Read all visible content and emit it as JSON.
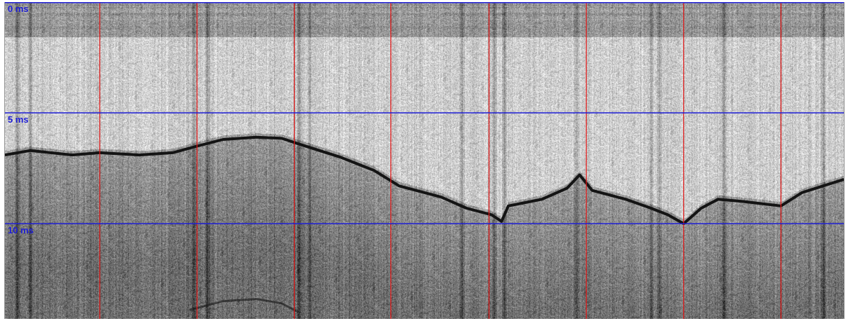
{
  "colors": {
    "time_line": "#1f1fd6",
    "marker_line": "#e01010",
    "label_text": "#1f1fd6",
    "reflector": "#141414"
  },
  "display": {
    "type": "radargram",
    "palette": "grayscale",
    "time_unit": "ms",
    "time_range_ms": [
      0,
      14.3
    ],
    "trace_range": [
      0,
      1
    ]
  },
  "time_lines": [
    {
      "label": "0 ms",
      "time_ms": 0
    },
    {
      "label": "5 ms",
      "time_ms": 5
    },
    {
      "label": "10 ms",
      "time_ms": 10
    }
  ],
  "markers": [
    0.113,
    0.229,
    0.345,
    0.46,
    0.577,
    0.693,
    0.809,
    0.925
  ],
  "bright_columns": [
    0.014,
    0.03,
    0.225,
    0.241,
    0.351,
    0.363,
    0.545,
    0.583,
    0.595,
    0.681,
    0.77,
    0.78,
    0.857,
    0.975
  ],
  "reflector": {
    "points": [
      [
        0.0,
        6.9
      ],
      [
        0.03,
        6.7
      ],
      [
        0.08,
        6.9
      ],
      [
        0.113,
        6.8
      ],
      [
        0.16,
        6.9
      ],
      [
        0.2,
        6.8
      ],
      [
        0.229,
        6.5
      ],
      [
        0.26,
        6.2
      ],
      [
        0.3,
        6.1
      ],
      [
        0.33,
        6.15
      ],
      [
        0.35,
        6.4
      ],
      [
        0.4,
        7.0
      ],
      [
        0.44,
        7.6
      ],
      [
        0.47,
        8.3
      ],
      [
        0.52,
        8.8
      ],
      [
        0.55,
        9.3
      ],
      [
        0.58,
        9.6
      ],
      [
        0.592,
        9.9
      ],
      [
        0.6,
        9.2
      ],
      [
        0.64,
        8.9
      ],
      [
        0.67,
        8.4
      ],
      [
        0.685,
        7.8
      ],
      [
        0.7,
        8.5
      ],
      [
        0.74,
        8.9
      ],
      [
        0.77,
        9.3
      ],
      [
        0.79,
        9.6
      ],
      [
        0.809,
        10.0
      ],
      [
        0.83,
        9.3
      ],
      [
        0.85,
        8.9
      ],
      [
        0.88,
        9.0
      ],
      [
        0.925,
        9.2
      ],
      [
        0.95,
        8.6
      ],
      [
        1.0,
        8.0
      ]
    ],
    "lower_points": [
      [
        0.22,
        13.9
      ],
      [
        0.26,
        13.5
      ],
      [
        0.3,
        13.4
      ],
      [
        0.33,
        13.6
      ],
      [
        0.35,
        14.0
      ]
    ]
  }
}
